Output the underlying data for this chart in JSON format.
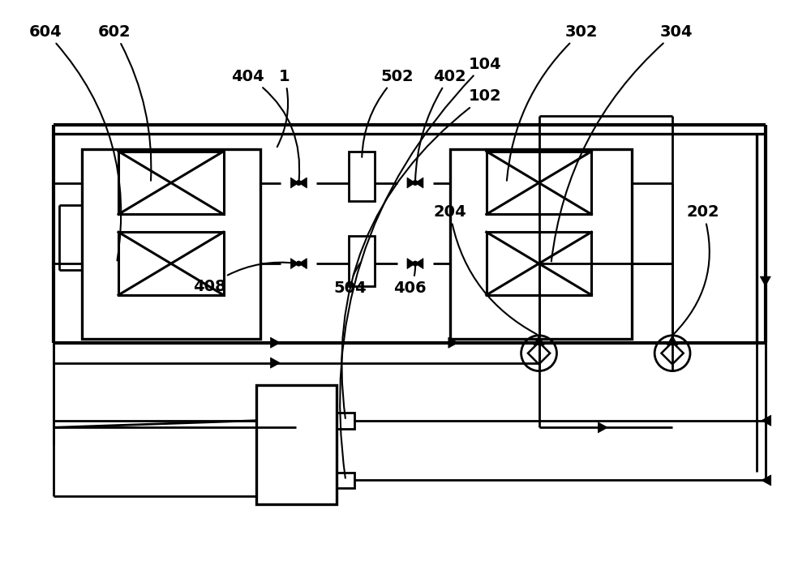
{
  "bg": "#ffffff",
  "lc": "#000000",
  "lw": 2.0,
  "fw": 10.0,
  "fh": 7.13
}
